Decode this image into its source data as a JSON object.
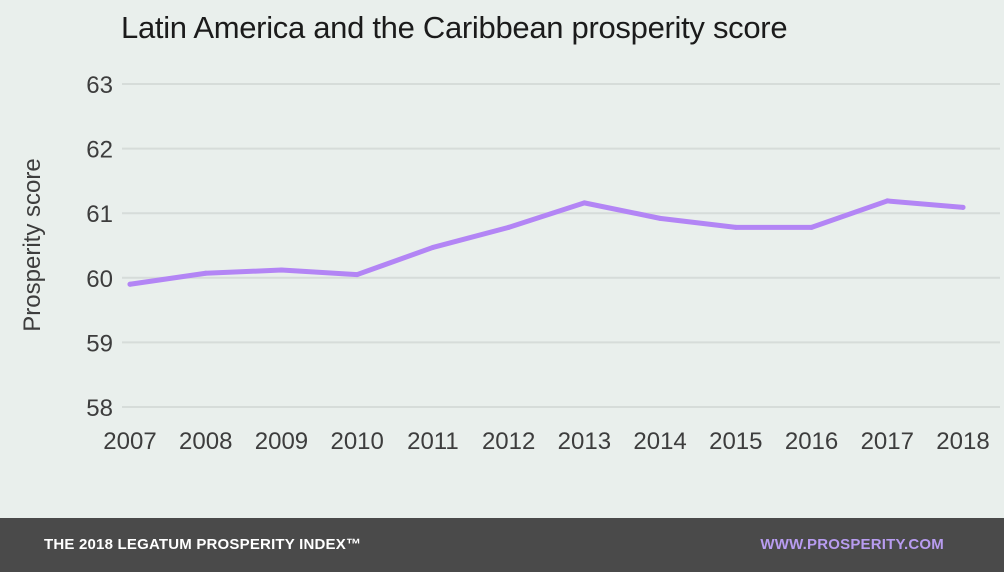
{
  "chart_data": {
    "type": "line",
    "title": "Latin America and the Caribbean prosperity score",
    "xlabel": "",
    "ylabel": "Prosperity score",
    "categories": [
      "2007",
      "2008",
      "2009",
      "2010",
      "2011",
      "2012",
      "2013",
      "2014",
      "2015",
      "2016",
      "2017",
      "2018"
    ],
    "series": [
      {
        "values": [
          59.9,
          60.07,
          60.12,
          60.05,
          60.47,
          60.78,
          61.16,
          60.92,
          60.78,
          60.78,
          61.19,
          61.09
        ]
      }
    ],
    "yticks": [
      "58",
      "59",
      "60",
      "61",
      "62",
      "63"
    ],
    "ylim": [
      58,
      63
    ],
    "grid": true,
    "colors": {
      "line": "#b385f5",
      "grid": "#d6dcd9"
    }
  },
  "footer": {
    "left": "THE 2018 LEGATUM PROSPERITY INDEX™",
    "right": "WWW.PROSPERITY.COM"
  }
}
